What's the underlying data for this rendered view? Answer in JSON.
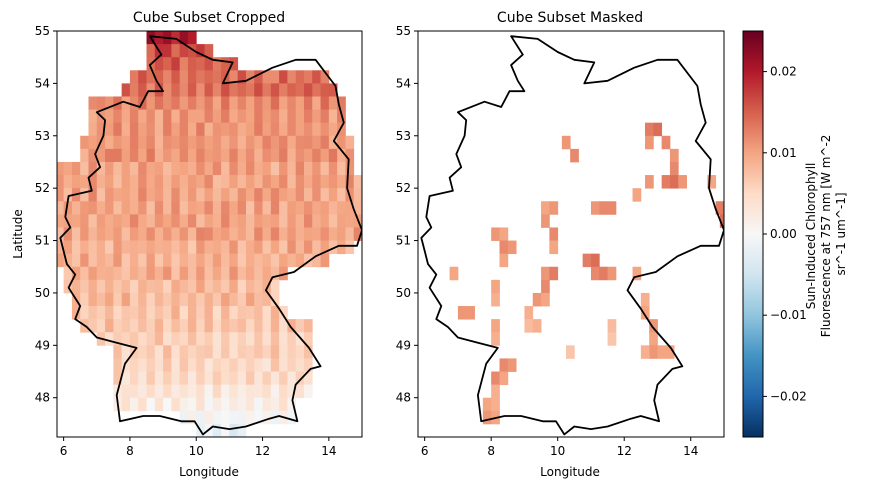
{
  "chart_data": [
    {
      "type": "heatmap",
      "title": "Cube Subset Cropped",
      "xlabel": "Longitude",
      "ylabel": "Latitude",
      "xlim": [
        5.8,
        15.0
      ],
      "ylim": [
        47.25,
        55.0
      ],
      "xticks": [
        "6",
        "8",
        "10",
        "12",
        "14"
      ],
      "yticks": [
        "48",
        "49",
        "50",
        "51",
        "52",
        "53",
        "54",
        "55"
      ],
      "grid": false,
      "value_range": [
        -0.025,
        0.025
      ],
      "cell_size_deg": 0.25,
      "rows_lat": [
        54.875,
        54.625,
        54.375,
        54.125,
        53.875,
        53.625,
        53.375,
        53.125,
        52.875,
        52.625,
        52.375,
        52.125,
        51.875,
        51.625,
        51.375,
        51.125,
        50.875,
        50.625,
        50.375,
        50.125,
        49.875,
        49.625,
        49.375,
        49.125,
        48.875,
        48.625,
        48.375,
        48.125,
        47.875,
        47.625,
        47.375
      ],
      "approx_sif_by_lat_band": [
        0.02,
        0.016,
        0.015,
        0.014,
        0.014,
        0.012,
        0.011,
        0.011,
        0.011,
        0.011,
        0.01,
        0.01,
        0.01,
        0.01,
        0.01,
        0.01,
        0.009,
        0.009,
        0.009,
        0.008,
        0.008,
        0.007,
        0.007,
        0.006,
        0.006,
        0.005,
        0.005,
        0.003,
        0.002,
        0.0,
        -0.002
      ],
      "extent_lon_by_lat_band": [
        [
          8.6,
          9.9
        ],
        [
          8.4,
          10.6
        ],
        [
          8.4,
          11.3
        ],
        [
          8.1,
          13.9
        ],
        [
          7.8,
          14.3
        ],
        [
          6.8,
          14.6
        ],
        [
          6.8,
          14.6
        ],
        [
          6.8,
          14.6
        ],
        [
          6.6,
          14.8
        ],
        [
          6.6,
          14.8
        ],
        [
          5.8,
          14.8
        ],
        [
          5.8,
          15.0
        ],
        [
          5.8,
          15.0
        ],
        [
          5.8,
          15.0
        ],
        [
          5.8,
          15.0
        ],
        [
          5.8,
          15.0
        ],
        [
          5.8,
          14.8
        ],
        [
          5.8,
          13.9
        ],
        [
          6.1,
          12.8
        ],
        [
          6.1,
          12.4
        ],
        [
          6.3,
          12.4
        ],
        [
          6.3,
          12.8
        ],
        [
          6.6,
          13.4
        ],
        [
          7.1,
          13.6
        ],
        [
          7.6,
          13.6
        ],
        [
          7.6,
          13.6
        ],
        [
          7.6,
          13.4
        ],
        [
          7.6,
          13.4
        ],
        [
          7.6,
          13.1
        ],
        [
          9.4,
          12.9
        ],
        [
          9.9,
          11.6
        ]
      ]
    },
    {
      "type": "heatmap",
      "title": "Cube Subset Masked",
      "xlabel": "Longitude",
      "ylabel": "",
      "xlim": [
        5.8,
        15.0
      ],
      "ylim": [
        47.25,
        55.0
      ],
      "xticks": [
        "6",
        "8",
        "10",
        "12",
        "14"
      ],
      "yticks": [
        "48",
        "49",
        "50",
        "51",
        "52",
        "53",
        "54",
        "55"
      ],
      "grid": false,
      "value_range": [
        -0.025,
        0.025
      ],
      "cells": [
        [
          12.75,
          53.125,
          0.013
        ],
        [
          13.0,
          53.125,
          0.014
        ],
        [
          12.75,
          52.875,
          0.011
        ],
        [
          13.25,
          52.875,
          0.012
        ],
        [
          10.25,
          52.875,
          0.011
        ],
        [
          10.5,
          52.625,
          0.012
        ],
        [
          13.5,
          52.625,
          0.011
        ],
        [
          13.5,
          52.375,
          0.012
        ],
        [
          12.75,
          52.125,
          0.011
        ],
        [
          13.25,
          52.125,
          0.013
        ],
        [
          13.5,
          52.125,
          0.014
        ],
        [
          13.75,
          52.125,
          0.011
        ],
        [
          14.625,
          52.125,
          0.01
        ],
        [
          12.375,
          51.875,
          0.01
        ],
        [
          14.875,
          51.625,
          0.013
        ],
        [
          15.0,
          51.375,
          0.014
        ],
        [
          9.625,
          51.625,
          0.01
        ],
        [
          9.875,
          51.625,
          0.011
        ],
        [
          11.125,
          51.625,
          0.011
        ],
        [
          11.375,
          51.625,
          0.012
        ],
        [
          11.625,
          51.625,
          0.012
        ],
        [
          9.625,
          51.375,
          0.011
        ],
        [
          8.125,
          51.125,
          0.011
        ],
        [
          8.375,
          51.125,
          0.01
        ],
        [
          9.875,
          51.125,
          0.012
        ],
        [
          8.375,
          50.875,
          0.012
        ],
        [
          8.625,
          50.875,
          0.011
        ],
        [
          9.875,
          50.875,
          0.01
        ],
        [
          8.375,
          50.625,
          0.01
        ],
        [
          10.875,
          50.625,
          0.013
        ],
        [
          11.125,
          50.625,
          0.014
        ],
        [
          11.125,
          50.375,
          0.012
        ],
        [
          11.375,
          50.375,
          0.013
        ],
        [
          11.625,
          50.375,
          0.011
        ],
        [
          12.375,
          50.375,
          0.01
        ],
        [
          6.875,
          50.375,
          0.01
        ],
        [
          9.625,
          50.375,
          0.011
        ],
        [
          9.875,
          50.375,
          0.013
        ],
        [
          9.625,
          50.125,
          0.012
        ],
        [
          8.125,
          50.125,
          0.01
        ],
        [
          8.125,
          49.875,
          0.009
        ],
        [
          9.375,
          49.875,
          0.011
        ],
        [
          9.625,
          49.875,
          0.01
        ],
        [
          12.625,
          49.875,
          0.009
        ],
        [
          7.125,
          49.625,
          0.011
        ],
        [
          7.375,
          49.625,
          0.011
        ],
        [
          9.125,
          49.625,
          0.009
        ],
        [
          12.625,
          49.625,
          0.01
        ],
        [
          12.875,
          49.375,
          0.011
        ],
        [
          9.125,
          49.375,
          0.008
        ],
        [
          9.375,
          49.375,
          0.009
        ],
        [
          8.125,
          49.375,
          0.01
        ],
        [
          11.625,
          49.375,
          0.008
        ],
        [
          8.125,
          49.125,
          0.009
        ],
        [
          11.625,
          49.125,
          0.007
        ],
        [
          12.875,
          49.125,
          0.01
        ],
        [
          12.875,
          48.875,
          0.011
        ],
        [
          13.125,
          48.875,
          0.01
        ],
        [
          12.625,
          48.875,
          0.009
        ],
        [
          13.375,
          48.875,
          0.01
        ],
        [
          10.375,
          48.875,
          0.007
        ],
        [
          8.375,
          48.625,
          0.012
        ],
        [
          8.625,
          48.625,
          0.011
        ],
        [
          8.125,
          48.375,
          0.012
        ],
        [
          8.375,
          48.375,
          0.01
        ],
        [
          8.125,
          48.125,
          0.009
        ],
        [
          7.875,
          47.875,
          0.01
        ],
        [
          8.125,
          47.875,
          0.009
        ],
        [
          7.875,
          47.625,
          0.011
        ],
        [
          8.125,
          47.625,
          0.01
        ]
      ]
    }
  ],
  "colorbar": {
    "label_lines": [
      "Sun-Induced Chlorophyll",
      "Fluorescence at 757 nm [W m^-2",
      "sr^-1 um^-1]"
    ],
    "ticks": [
      "0.02",
      "0.01",
      "0.00",
      "−0.01",
      "−0.02"
    ],
    "tick_values": [
      0.02,
      0.01,
      0.0,
      -0.01,
      -0.02
    ],
    "range": [
      -0.025,
      0.025
    ],
    "colormap": "RdBu_r"
  },
  "colors": {
    "border": "#000000",
    "cmap_stops": [
      "#053061",
      "#2166ac",
      "#4393c3",
      "#92c5de",
      "#d1e5f0",
      "#f7f7f7",
      "#fddbc7",
      "#f4a582",
      "#d6604d",
      "#b2182b",
      "#67001f"
    ]
  }
}
